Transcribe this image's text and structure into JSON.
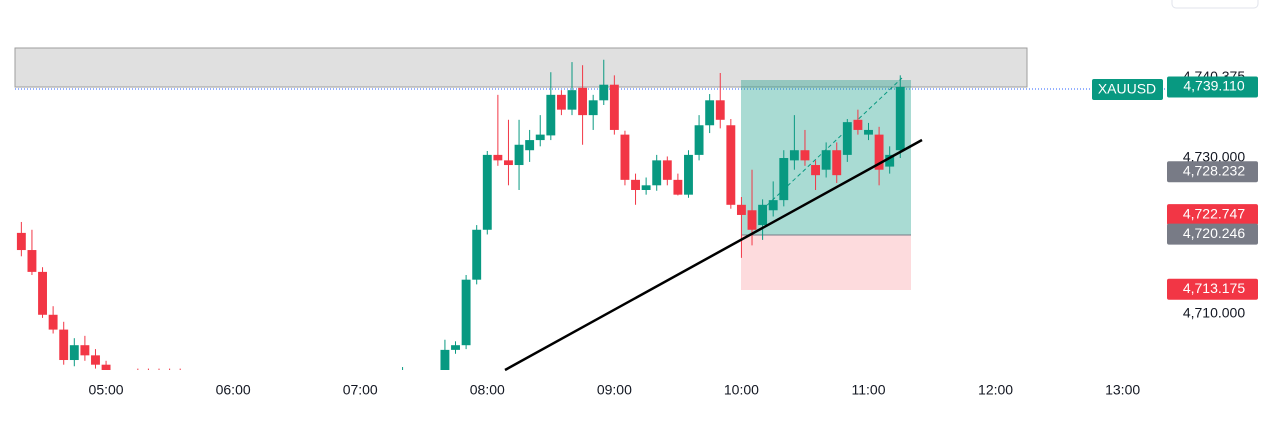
{
  "chart_data": {
    "type": "candlestick",
    "symbol": "XAUUSD",
    "up_color": "#089981",
    "down_color": "#f23645",
    "x": [
      260,
      265,
      270,
      275,
      280,
      285,
      290,
      295,
      300,
      315,
      320,
      325,
      330,
      335,
      440,
      460,
      465,
      470,
      475,
      480,
      485,
      490,
      495,
      500,
      505,
      510,
      515,
      520,
      525,
      530,
      535,
      540,
      545,
      550,
      555,
      560,
      565,
      570,
      575,
      580,
      585,
      590,
      595,
      600,
      605,
      610,
      615,
      620,
      625,
      630,
      635,
      640,
      645,
      650,
      655,
      660,
      665,
      670,
      675
    ],
    "open": [
      4720.4,
      4718.2,
      4715.4,
      4709.9,
      4708.0,
      4704.1,
      4706.0,
      4704.7,
      4703.5,
      4701.5,
      4701.5,
      4701.5,
      4701.5,
      4701.5,
      4701.0,
      4702.8,
      4705.4,
      4706.0,
      4714.4,
      4720.8,
      4730.4,
      4729.7,
      4729.1,
      4731.0,
      4732.3,
      4732.9,
      4738.1,
      4736.2,
      4739.0,
      4735.5,
      4737.4,
      4739.4,
      4733.0,
      4727.2,
      4725.9,
      4726.5,
      4729.7,
      4727.2,
      4725.3,
      4730.4,
      4734.2,
      4737.4,
      4734.2,
      4724.0,
      4723.3,
      4721.4,
      4723.3,
      4724.6,
      4729.7,
      4731.0,
      4729.1,
      4728.5,
      4731.0,
      4730.4,
      4734.9,
      4733.0,
      4733.0,
      4728.9,
      4731.0
    ],
    "high": [
      4721.8,
      4720.8,
      4716.0,
      4711.0,
      4709.0,
      4706.9,
      4707.2,
      4705.5,
      4704.0,
      4703.0,
      4703.0,
      4703.0,
      4703.0,
      4703.0,
      4703.2,
      4706.7,
      4706.5,
      4715.0,
      4721.4,
      4730.9,
      4738.1,
      4734.9,
      4734.9,
      4733.6,
      4735.5,
      4741.0,
      4738.7,
      4742.3,
      4741.9,
      4738.1,
      4742.6,
      4740.6,
      4733.5,
      4728.0,
      4727.5,
      4730.4,
      4730.2,
      4728.0,
      4731.0,
      4735.5,
      4738.2,
      4740.9,
      4735.0,
      4725.0,
      4728.5,
      4724.7,
      4727.0,
      4731.0,
      4735.5,
      4733.6,
      4729.7,
      4732.0,
      4732.0,
      4735.0,
      4736.2,
      4734.5,
      4734.0,
      4731.5,
      4740.6
    ],
    "low": [
      4717.4,
      4715.0,
      4709.5,
      4707.5,
      4703.5,
      4703.3,
      4704.0,
      4703.0,
      4701.5,
      4700.0,
      4700.0,
      4700.0,
      4700.0,
      4700.0,
      4700.5,
      4702.0,
      4704.9,
      4705.5,
      4713.8,
      4720.2,
      4729.0,
      4726.5,
      4725.9,
      4729.5,
      4731.5,
      4732.3,
      4735.5,
      4735.5,
      4731.7,
      4733.6,
      4736.8,
      4733.0,
      4726.5,
      4724.0,
      4725.3,
      4725.8,
      4726.5,
      4725.2,
      4724.9,
      4729.7,
      4733.2,
      4733.8,
      4723.5,
      4717.2,
      4718.8,
      4719.5,
      4722.5,
      4723.8,
      4728.5,
      4729.0,
      4725.9,
      4727.5,
      4726.8,
      4729.5,
      4733.0,
      4732.3,
      4726.5,
      4728.0,
      4730.0
    ],
    "close": [
      4718.2,
      4715.4,
      4709.9,
      4708.0,
      4704.1,
      4706.0,
      4704.7,
      4703.5,
      4702.3,
      4701.0,
      4701.0,
      4701.0,
      4701.0,
      4701.0,
      4701.5,
      4705.4,
      4706.0,
      4714.4,
      4720.8,
      4730.4,
      4729.7,
      4729.1,
      4731.7,
      4732.3,
      4733.0,
      4738.1,
      4736.2,
      4738.7,
      4735.5,
      4737.4,
      4739.4,
      4733.6,
      4727.2,
      4725.9,
      4726.5,
      4729.7,
      4727.2,
      4725.3,
      4730.4,
      4734.2,
      4737.4,
      4734.9,
      4724.0,
      4722.7,
      4720.8,
      4724.0,
      4724.6,
      4730.0,
      4731.0,
      4729.7,
      4727.8,
      4731.0,
      4727.8,
      4734.6,
      4733.6,
      4733.6,
      4728.5,
      4730.4,
      4739.11
    ],
    "xlim": [
      257,
      800
    ],
    "xticks": [
      {
        "value": 300,
        "label": "05:00"
      },
      {
        "value": 360,
        "label": "06:00"
      },
      {
        "value": 420,
        "label": "07:00"
      },
      {
        "value": 480,
        "label": "08:00"
      },
      {
        "value": 540,
        "label": "09:00"
      },
      {
        "value": 600,
        "label": "10:00"
      },
      {
        "value": 660,
        "label": "11:00"
      },
      {
        "value": 720,
        "label": "12:00"
      },
      {
        "value": 780,
        "label": "13:00"
      }
    ],
    "ylim": [
      4702.82,
      4750.26
    ],
    "yticks": [
      {
        "value": 4730,
        "label": "4,730.000"
      },
      {
        "value": 4710,
        "label": "4,710.000"
      }
    ],
    "price_labels": [
      {
        "value": 4740.375,
        "label": "4,740.375"
      },
      {
        "value": 4739.11,
        "label": "4,739.110",
        "color": "#089981"
      },
      {
        "value": 4728.232,
        "label": "4,728.232",
        "color": "#787b86"
      },
      {
        "value": 4722.747,
        "label": "4,722.747",
        "color": "#f23645"
      },
      {
        "value": 4720.246,
        "label": "4,720.246",
        "color": "#787b86"
      },
      {
        "value": 4713.175,
        "label": "4,713.175",
        "color": "#f23645"
      }
    ]
  }
}
